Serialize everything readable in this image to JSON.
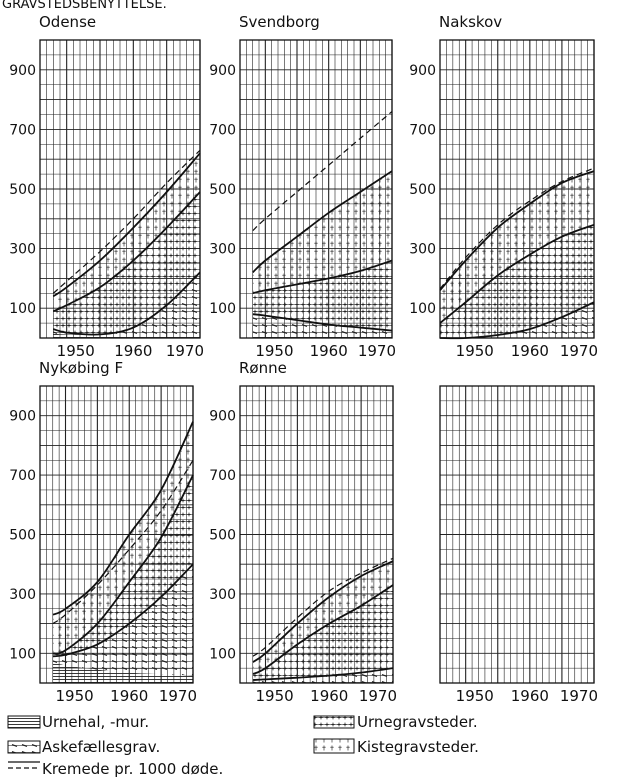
{
  "header_text": "GRAVSTEDSBENYTTELSE.",
  "chart_data": [
    {
      "type": "area",
      "title": "Odense",
      "x": [
        1948,
        1950,
        1955,
        1960,
        1965,
        1970
      ],
      "y_ticks": [
        100,
        300,
        500,
        700,
        900
      ],
      "x_ticks": [
        1950,
        1960,
        1970
      ],
      "xlim": [
        1946,
        1970
      ],
      "ylim": [
        0,
        1000
      ],
      "series": [
        {
          "name": "Urnehal, -mur.",
          "values": [
            15,
            12,
            10,
            8,
            6,
            5
          ]
        },
        {
          "name": "Askefællesgrav.",
          "values": [
            30,
            18,
            12,
            35,
            110,
            220
          ]
        },
        {
          "name": "Urnegravsteder.",
          "values": [
            90,
            110,
            170,
            260,
            370,
            490
          ]
        },
        {
          "name": "Kistegravsteder.",
          "values": [
            140,
            170,
            260,
            370,
            490,
            620
          ]
        },
        {
          "name": "Kremede pr. 1000 døde.",
          "values": [
            150,
            190,
            290,
            400,
            520,
            630
          ]
        }
      ]
    },
    {
      "type": "area",
      "title": "Svendborg",
      "x": [
        1948,
        1950,
        1955,
        1960,
        1965,
        1970
      ],
      "y_ticks": [
        100,
        300,
        500,
        700,
        900
      ],
      "x_ticks": [
        1950,
        1960,
        1970
      ],
      "xlim": [
        1946,
        1970
      ],
      "ylim": [
        0,
        1000
      ],
      "series": [
        {
          "name": "Urnehal, -mur.",
          "values": [
            5,
            5,
            5,
            5,
            5,
            5
          ]
        },
        {
          "name": "Askefællesgrav.",
          "values": [
            80,
            75,
            60,
            45,
            35,
            25
          ]
        },
        {
          "name": "Urnegravsteder.",
          "values": [
            150,
            160,
            180,
            200,
            225,
            260
          ]
        },
        {
          "name": "Kistegravsteder.",
          "values": [
            220,
            260,
            340,
            420,
            490,
            560
          ]
        },
        {
          "name": "Kremede pr. 1000 døde.",
          "values": [
            360,
            400,
            490,
            580,
            670,
            760
          ]
        }
      ]
    },
    {
      "type": "area",
      "title": "Nakskov",
      "x": [
        1946,
        1950,
        1955,
        1960,
        1965,
        1970
      ],
      "y_ticks": [
        100,
        300,
        500,
        700,
        900
      ],
      "x_ticks": [
        1950,
        1960,
        1970
      ],
      "xlim": [
        1946,
        1970
      ],
      "ylim": [
        0,
        1000
      ],
      "series": [
        {
          "name": "Urnehal, -mur.",
          "values": [
            0,
            0,
            0,
            0,
            0,
            0
          ]
        },
        {
          "name": "Askefællesgrav.",
          "values": [
            0,
            0,
            10,
            30,
            70,
            120
          ]
        },
        {
          "name": "Urnegravsteder.",
          "values": [
            50,
            120,
            210,
            280,
            340,
            380
          ]
        },
        {
          "name": "Kistegravsteder.",
          "values": [
            160,
            260,
            370,
            450,
            520,
            560
          ]
        },
        {
          "name": "Kremede pr. 1000 døde.",
          "values": [
            165,
            270,
            380,
            460,
            525,
            570
          ]
        }
      ]
    },
    {
      "type": "area",
      "title": "Nykøbing F",
      "x": [
        1948,
        1950,
        1955,
        1960,
        1965,
        1970
      ],
      "y_ticks": [
        100,
        300,
        500,
        700,
        900
      ],
      "x_ticks": [
        1950,
        1960,
        1970
      ],
      "xlim": [
        1946,
        1970
      ],
      "ylim": [
        0,
        1000
      ],
      "series": [
        {
          "name": "Urnehal, -mur.",
          "values": [
            70,
            60,
            45,
            35,
            30,
            25
          ]
        },
        {
          "name": "Askefællesgrav.",
          "values": [
            90,
            95,
            130,
            200,
            290,
            400
          ]
        },
        {
          "name": "Urnegravsteder.",
          "values": [
            100,
            110,
            200,
            340,
            490,
            700
          ]
        },
        {
          "name": "Kistegravsteder.",
          "values": [
            230,
            250,
            340,
            500,
            650,
            880
          ]
        },
        {
          "name": "Kremede pr. 1000 døde.",
          "values": [
            200,
            230,
            330,
            450,
            580,
            750
          ]
        }
      ]
    },
    {
      "type": "area",
      "title": "Rønne",
      "x": [
        1948,
        1950,
        1955,
        1960,
        1965,
        1970
      ],
      "y_ticks": [
        100,
        300,
        500,
        700,
        900
      ],
      "x_ticks": [
        1950,
        1960,
        1970
      ],
      "xlim": [
        1946,
        1970
      ],
      "ylim": [
        0,
        1000
      ],
      "series": [
        {
          "name": "Urnehal, -mur.",
          "values": [
            0,
            0,
            0,
            0,
            0,
            0
          ]
        },
        {
          "name": "Askefællesgrav.",
          "values": [
            10,
            12,
            18,
            25,
            35,
            50
          ]
        },
        {
          "name": "Urnegravsteder.",
          "values": [
            30,
            50,
            130,
            200,
            260,
            330
          ]
        },
        {
          "name": "Kistegravsteder.",
          "values": [
            70,
            100,
            200,
            290,
            360,
            410
          ]
        },
        {
          "name": "Kremede pr. 1000 døde.",
          "values": [
            90,
            120,
            220,
            310,
            370,
            420
          ]
        }
      ]
    },
    {
      "type": "area",
      "title": "",
      "x": [],
      "y_ticks": [],
      "x_ticks": [
        1950,
        1960,
        1970
      ],
      "xlim": [
        1946,
        1970
      ],
      "ylim": [
        0,
        1000
      ],
      "series": []
    }
  ],
  "legend": [
    {
      "key": "urnehal",
      "label": "Urnehal, -mur."
    },
    {
      "key": "aske",
      "label": "Askefællesgrav."
    },
    {
      "key": "kremede",
      "label": "Kremede pr. 1000 døde."
    },
    {
      "key": "urnegrav",
      "label": "Urnegravsteder."
    },
    {
      "key": "kiste",
      "label": "Kistegravsteder."
    }
  ]
}
